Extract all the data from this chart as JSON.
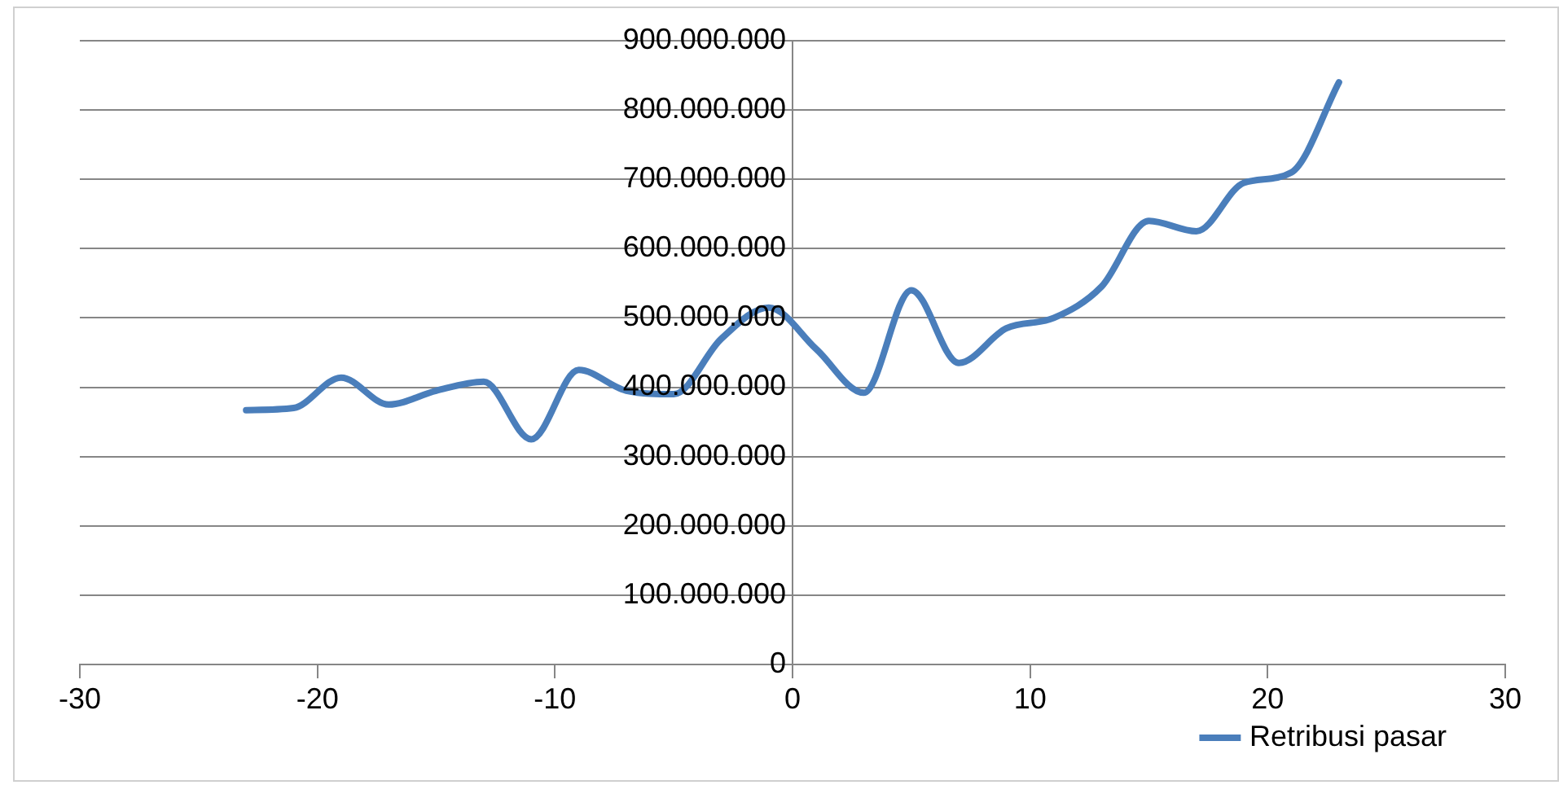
{
  "chart_data": {
    "type": "line",
    "x": [
      -23,
      -21,
      -19,
      -17,
      -15,
      -13,
      -11,
      -9,
      -7,
      -5,
      -3,
      -1,
      1,
      3,
      5,
      7,
      9,
      11,
      13,
      15,
      17,
      19,
      21,
      23
    ],
    "series": [
      {
        "name": "Retribusi pasar",
        "color": "#4a7ebb",
        "values": [
          367000000,
          370000000,
          414000000,
          375000000,
          395000000,
          408000000,
          325000000,
          425000000,
          395000000,
          390000000,
          470000000,
          515000000,
          455000000,
          392000000,
          540000000,
          435000000,
          485000000,
          500000000,
          545000000,
          640000000,
          625000000,
          695000000,
          710000000,
          840000000
        ]
      }
    ],
    "xlim": [
      -30,
      30
    ],
    "xticks": [
      -30,
      -20,
      -10,
      0,
      10,
      20,
      30
    ],
    "ylim": [
      0,
      900000000
    ],
    "yticks": [
      0,
      {
        "value": 100000000,
        "label": "100.000.000"
      },
      {
        "value": 200000000,
        "label": "200.000.000"
      },
      {
        "value": 300000000,
        "label": "300.000.000"
      },
      {
        "value": 400000000,
        "label": "400.000.000"
      },
      {
        "value": 500000000,
        "label": "500.000.000"
      },
      {
        "value": 600000000,
        "label": "600.000.000"
      },
      {
        "value": 700000000,
        "label": "700.000.000"
      },
      {
        "value": 800000000,
        "label": "800.000.000"
      },
      {
        "value": 900000000,
        "label": "900.000.000"
      }
    ],
    "grid": "y",
    "legend": "bottom right",
    "marker": "none",
    "line_style": "solid"
  }
}
